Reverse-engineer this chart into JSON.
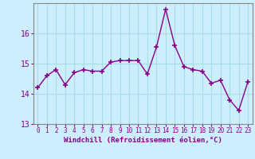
{
  "x": [
    0,
    1,
    2,
    3,
    4,
    5,
    6,
    7,
    8,
    9,
    10,
    11,
    12,
    13,
    14,
    15,
    16,
    17,
    18,
    19,
    20,
    21,
    22,
    23
  ],
  "y": [
    14.2,
    14.6,
    14.8,
    14.3,
    14.7,
    14.8,
    14.75,
    14.75,
    15.05,
    15.1,
    15.1,
    15.1,
    14.65,
    15.55,
    16.8,
    15.6,
    14.9,
    14.8,
    14.75,
    14.35,
    14.45,
    13.8,
    13.45,
    14.4
  ],
  "xlabel": "Windchill (Refroidissement éolien,°C)",
  "ylim": [
    13.0,
    17.0
  ],
  "xlim": [
    -0.5,
    23.5
  ],
  "yticks": [
    13,
    14,
    15,
    16
  ],
  "xticks": [
    0,
    1,
    2,
    3,
    4,
    5,
    6,
    7,
    8,
    9,
    10,
    11,
    12,
    13,
    14,
    15,
    16,
    17,
    18,
    19,
    20,
    21,
    22,
    23
  ],
  "line_color": "#880088",
  "marker": "+",
  "marker_size": 5,
  "marker_linewidth": 1.2,
  "background_color": "#cceeff",
  "grid_color": "#aadddd",
  "tick_color": "#880088",
  "label_color": "#880088",
  "axis_color": "#888888",
  "line_width": 1.0
}
